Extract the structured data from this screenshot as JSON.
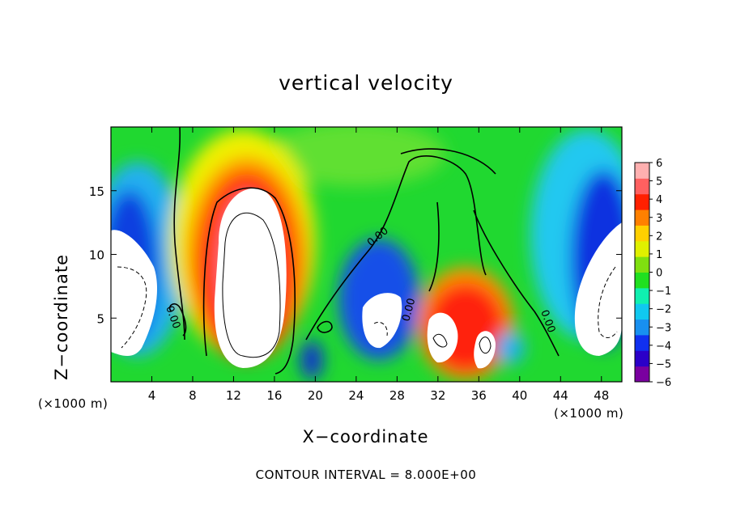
{
  "chart_data": {
    "type": "heatmap",
    "title": "vertical velocity",
    "xlabel": "X−coordinate",
    "ylabel": "Z−coordinate",
    "x_unit": "(×1000 m)",
    "y_unit": "(×1000 m)",
    "xlim": [
      0,
      50
    ],
    "ylim": [
      0,
      20
    ],
    "x_ticks": [
      4,
      8,
      12,
      16,
      20,
      24,
      28,
      32,
      36,
      40,
      44,
      48
    ],
    "y_ticks": [
      5,
      10,
      15
    ],
    "x_tick_labels": [
      "4",
      "8",
      "12",
      "16",
      "20",
      "24",
      "28",
      "32",
      "36",
      "40",
      "44",
      "48"
    ],
    "y_tick_labels": [
      "5",
      "10",
      "15"
    ],
    "colorbar": {
      "min": -6,
      "max": 6,
      "labels": [
        "6",
        "5",
        "4",
        "3",
        "2",
        "1",
        "0",
        "−1",
        "−2",
        "−3",
        "−4",
        "−5",
        "−6"
      ],
      "colors": [
        "#7a00a0",
        "#2b00c8",
        "#1030f0",
        "#1890f0",
        "#10c8f0",
        "#10f0b0",
        "#20e020",
        "#80e010",
        "#e0f000",
        "#ffd000",
        "#ff8000",
        "#ff2000",
        "#ff6060",
        "#ffb0b0"
      ]
    },
    "contour_label": "0.00",
    "contour_interval_text": "CONTOUR INTERVAL = 8.000E+00",
    "features": [
      {
        "x": 13,
        "z": 8,
        "value": 8,
        "kind": "updraft-core"
      },
      {
        "x": 34,
        "z": 4,
        "value": 6,
        "kind": "updraft"
      },
      {
        "x": 27,
        "z": 5,
        "value": -8,
        "kind": "downdraft-core"
      },
      {
        "x": 2,
        "z": 6,
        "value": -8,
        "kind": "downdraft-core"
      },
      {
        "x": 48,
        "z": 6,
        "value": -8,
        "kind": "downdraft-core"
      }
    ]
  }
}
